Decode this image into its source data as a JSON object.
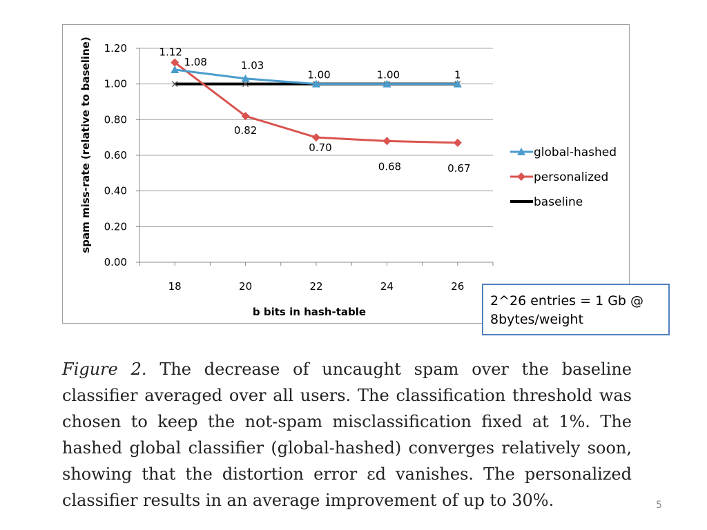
{
  "chart_data": {
    "type": "line",
    "x": [
      18,
      20,
      22,
      24,
      26
    ],
    "xlabel": "b bits in hash-table",
    "ylabel": "spam miss-rate (relative to baseline)",
    "ylim": [
      0,
      1.2
    ],
    "yticks": [
      "0.00",
      "0.20",
      "0.40",
      "0.60",
      "0.80",
      "1.00",
      "1.20"
    ],
    "xticks": [
      "18",
      "20",
      "22",
      "24",
      "26"
    ],
    "grid": "horizontal",
    "legend_position": "right",
    "series": [
      {
        "name": "global-hashed",
        "values": [
          1.08,
          1.03,
          1.0,
          1.0,
          1.0
        ],
        "labels": [
          "1.08",
          "1.03",
          "1.00",
          "1.00",
          "1"
        ],
        "color": "#4a9ccd",
        "marker": "triangle"
      },
      {
        "name": "personalized",
        "values": [
          1.12,
          0.82,
          0.7,
          0.68,
          0.67
        ],
        "labels": [
          "1.12",
          "0.82",
          "0.70",
          "0.68",
          "0.67"
        ],
        "color": "#d9534f",
        "marker": "diamond"
      },
      {
        "name": "baseline",
        "values": [
          1.0,
          1.0,
          1.0,
          1.0,
          1.0
        ],
        "labels": [],
        "color": "#000000",
        "marker": "x"
      }
    ]
  },
  "callout": {
    "line1": "2^26 entries = 1 Gb @",
    "line2": "8bytes/weight"
  },
  "caption": {
    "figure_label": "Figure 2.",
    "text": " The decrease of uncaught spam over the baseline classifier averaged over all users. The classification threshold was chosen to keep the not-spam misclassification fixed at 1%. The hashed global classifier (global-hashed) converges relatively soon, showing that the distortion error εd vanishes. The personalized classifier results in an average improvement of up to 30%."
  },
  "page_number": "5"
}
